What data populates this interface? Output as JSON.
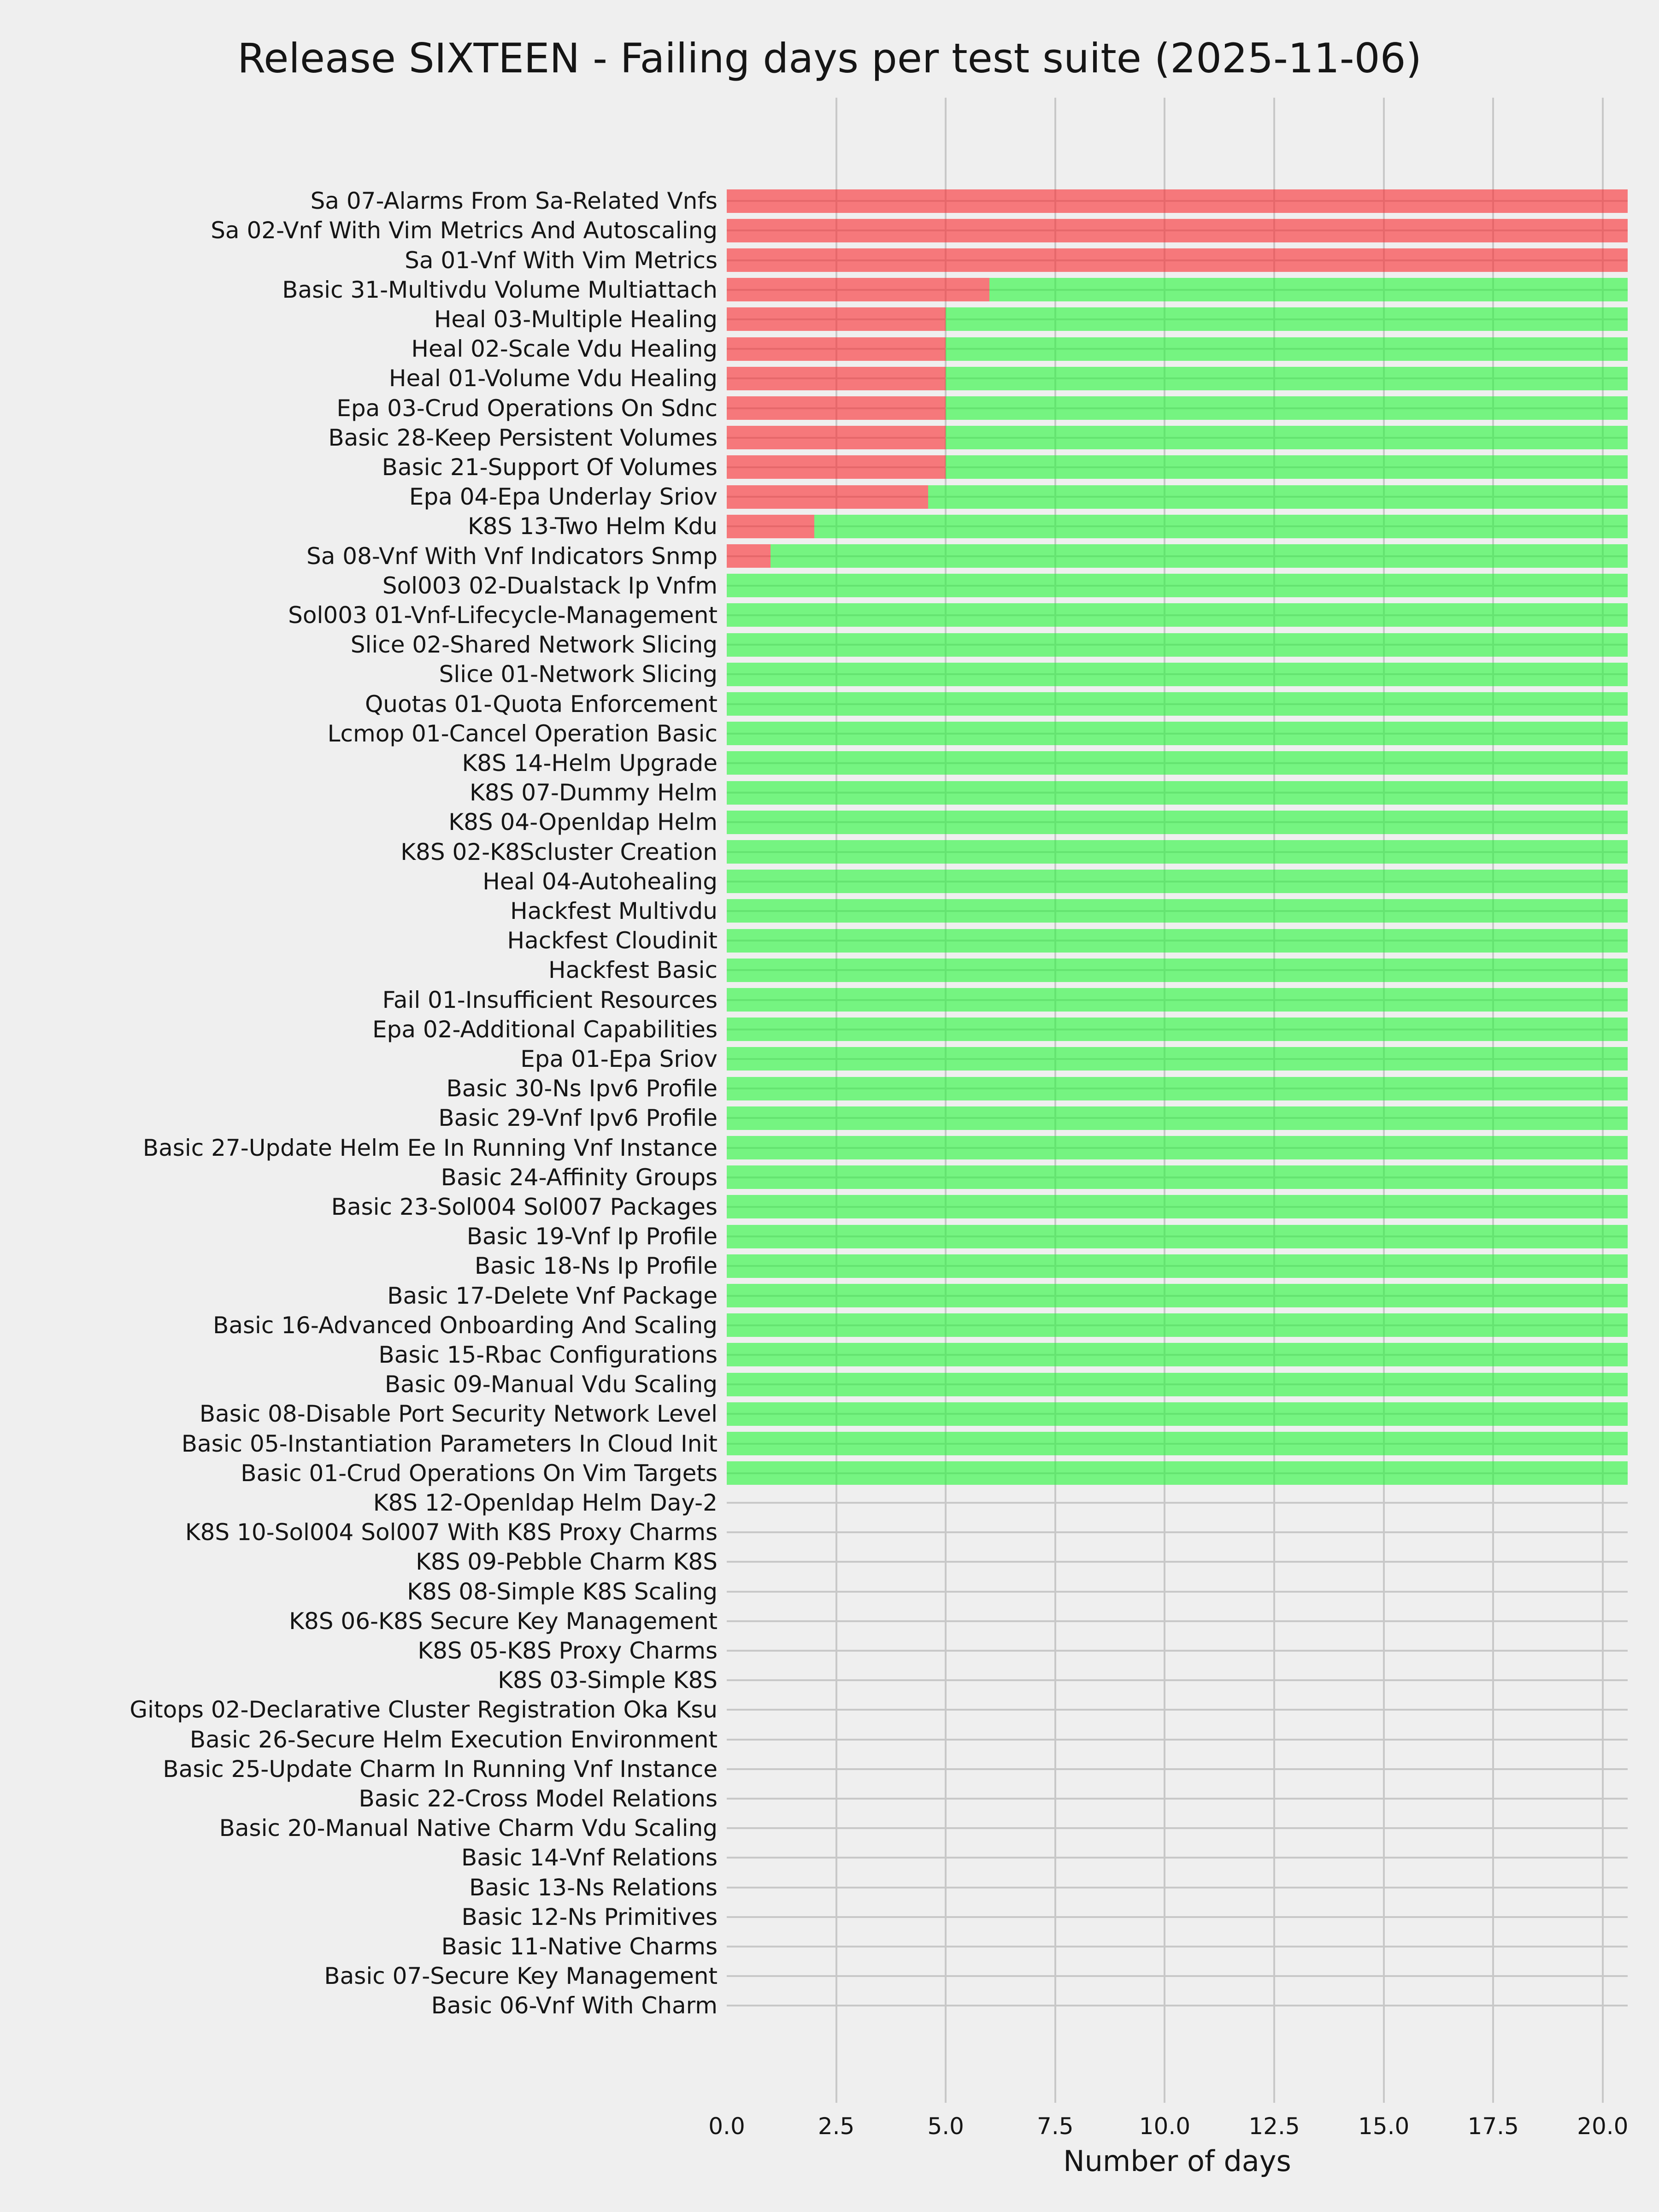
{
  "chart_data": {
    "type": "bar",
    "orientation": "horizontal",
    "stacked": true,
    "title": "Release SIXTEEN - Failing days per test suite (2025-11-06)",
    "xlabel": "Number of days",
    "xlim": [
      0,
      20.57
    ],
    "grid": true,
    "legend": "none",
    "x_ticks": {
      "values": [
        0,
        2.5,
        5,
        7.5,
        10,
        12.5,
        15,
        17.5,
        20
      ],
      "labels": [
        "0.0",
        "2.5",
        "5.0",
        "7.5",
        "10.0",
        "12.5",
        "15.0",
        "17.5",
        "20.0"
      ]
    },
    "series": [
      {
        "name": "failing-days",
        "color": "#f47577"
      },
      {
        "name": "passing-days",
        "color": "#79f47e"
      }
    ],
    "colors": {
      "background": "#efefef",
      "grid": "#c8c8c8",
      "text": "#151515",
      "failing_fill": "rgba(250,40,45,0.60)",
      "passing_fill": "rgba(35,247,55,0.60)"
    },
    "rows": [
      {
        "label": "Sa 07-Alarms From Sa-Related Vnfs",
        "failing": 20.57,
        "passing": 0
      },
      {
        "label": "Sa 02-Vnf With Vim Metrics And Autoscaling",
        "failing": 20.57,
        "passing": 0
      },
      {
        "label": "Sa 01-Vnf With Vim Metrics",
        "failing": 20.57,
        "passing": 0
      },
      {
        "label": "Basic 31-Multivdu Volume Multiattach",
        "failing": 6.0,
        "passing": 14.57
      },
      {
        "label": "Heal 03-Multiple Healing",
        "failing": 5.0,
        "passing": 15.57
      },
      {
        "label": "Heal 02-Scale Vdu Healing",
        "failing": 5.0,
        "passing": 15.57
      },
      {
        "label": "Heal 01-Volume Vdu Healing",
        "failing": 5.0,
        "passing": 15.57
      },
      {
        "label": "Epa 03-Crud Operations On Sdnc",
        "failing": 5.0,
        "passing": 15.57
      },
      {
        "label": "Basic 28-Keep Persistent Volumes",
        "failing": 5.0,
        "passing": 15.57
      },
      {
        "label": "Basic 21-Support Of Volumes",
        "failing": 5.0,
        "passing": 15.57
      },
      {
        "label": "Epa 04-Epa Underlay Sriov",
        "failing": 4.6,
        "passing": 15.97
      },
      {
        "label": "K8S 13-Two Helm Kdu",
        "failing": 2.0,
        "passing": 18.57
      },
      {
        "label": "Sa 08-Vnf With Vnf Indicators Snmp",
        "failing": 1.0,
        "passing": 19.57
      },
      {
        "label": "Sol003 02-Dualstack Ip Vnfm",
        "failing": 0,
        "passing": 20.57
      },
      {
        "label": "Sol003 01-Vnf-Lifecycle-Management",
        "failing": 0,
        "passing": 20.57
      },
      {
        "label": "Slice 02-Shared Network Slicing",
        "failing": 0,
        "passing": 20.57
      },
      {
        "label": "Slice 01-Network Slicing",
        "failing": 0,
        "passing": 20.57
      },
      {
        "label": "Quotas 01-Quota Enforcement",
        "failing": 0,
        "passing": 20.57
      },
      {
        "label": "Lcmop 01-Cancel Operation Basic",
        "failing": 0,
        "passing": 20.57
      },
      {
        "label": "K8S 14-Helm Upgrade",
        "failing": 0,
        "passing": 20.57
      },
      {
        "label": "K8S 07-Dummy Helm",
        "failing": 0,
        "passing": 20.57
      },
      {
        "label": "K8S 04-Openldap Helm",
        "failing": 0,
        "passing": 20.57
      },
      {
        "label": "K8S 02-K8Scluster Creation",
        "failing": 0,
        "passing": 20.57
      },
      {
        "label": "Heal 04-Autohealing",
        "failing": 0,
        "passing": 20.57
      },
      {
        "label": "Hackfest Multivdu",
        "failing": 0,
        "passing": 20.57
      },
      {
        "label": "Hackfest Cloudinit",
        "failing": 0,
        "passing": 20.57
      },
      {
        "label": "Hackfest Basic",
        "failing": 0,
        "passing": 20.57
      },
      {
        "label": "Fail 01-Insufficient Resources",
        "failing": 0,
        "passing": 20.57
      },
      {
        "label": "Epa 02-Additional Capabilities",
        "failing": 0,
        "passing": 20.57
      },
      {
        "label": "Epa 01-Epa Sriov",
        "failing": 0,
        "passing": 20.57
      },
      {
        "label": "Basic 30-Ns Ipv6 Profile",
        "failing": 0,
        "passing": 20.57
      },
      {
        "label": "Basic 29-Vnf Ipv6 Profile",
        "failing": 0,
        "passing": 20.57
      },
      {
        "label": "Basic 27-Update Helm Ee In Running Vnf Instance",
        "failing": 0,
        "passing": 20.57
      },
      {
        "label": "Basic 24-Affinity Groups",
        "failing": 0,
        "passing": 20.57
      },
      {
        "label": "Basic 23-Sol004 Sol007 Packages",
        "failing": 0,
        "passing": 20.57
      },
      {
        "label": "Basic 19-Vnf Ip Profile",
        "failing": 0,
        "passing": 20.57
      },
      {
        "label": "Basic 18-Ns Ip Profile",
        "failing": 0,
        "passing": 20.57
      },
      {
        "label": "Basic 17-Delete Vnf Package",
        "failing": 0,
        "passing": 20.57
      },
      {
        "label": "Basic 16-Advanced Onboarding And Scaling",
        "failing": 0,
        "passing": 20.57
      },
      {
        "label": "Basic 15-Rbac Configurations",
        "failing": 0,
        "passing": 20.57
      },
      {
        "label": "Basic 09-Manual Vdu Scaling",
        "failing": 0,
        "passing": 20.57
      },
      {
        "label": "Basic 08-Disable Port Security Network Level",
        "failing": 0,
        "passing": 20.57
      },
      {
        "label": "Basic 05-Instantiation Parameters In Cloud Init",
        "failing": 0,
        "passing": 20.57
      },
      {
        "label": "Basic 01-Crud Operations On Vim Targets",
        "failing": 0,
        "passing": 20.57
      },
      {
        "label": "K8S 12-Openldap Helm Day-2",
        "failing": 0,
        "passing": 0
      },
      {
        "label": "K8S 10-Sol004 Sol007 With K8S Proxy Charms",
        "failing": 0,
        "passing": 0
      },
      {
        "label": "K8S 09-Pebble Charm K8S",
        "failing": 0,
        "passing": 0
      },
      {
        "label": "K8S 08-Simple K8S Scaling",
        "failing": 0,
        "passing": 0
      },
      {
        "label": "K8S 06-K8S Secure Key Management",
        "failing": 0,
        "passing": 0
      },
      {
        "label": "K8S 05-K8S Proxy Charms",
        "failing": 0,
        "passing": 0
      },
      {
        "label": "K8S 03-Simple K8S",
        "failing": 0,
        "passing": 0
      },
      {
        "label": "Gitops 02-Declarative Cluster Registration Oka Ksu",
        "failing": 0,
        "passing": 0
      },
      {
        "label": "Basic 26-Secure Helm Execution Environment",
        "failing": 0,
        "passing": 0
      },
      {
        "label": "Basic 25-Update Charm In Running Vnf Instance",
        "failing": 0,
        "passing": 0
      },
      {
        "label": "Basic 22-Cross Model Relations",
        "failing": 0,
        "passing": 0
      },
      {
        "label": "Basic 20-Manual Native Charm Vdu Scaling",
        "failing": 0,
        "passing": 0
      },
      {
        "label": "Basic 14-Vnf Relations",
        "failing": 0,
        "passing": 0
      },
      {
        "label": "Basic 13-Ns Relations",
        "failing": 0,
        "passing": 0
      },
      {
        "label": "Basic 12-Ns Primitives",
        "failing": 0,
        "passing": 0
      },
      {
        "label": "Basic 11-Native Charms",
        "failing": 0,
        "passing": 0
      },
      {
        "label": "Basic 07-Secure Key Management",
        "failing": 0,
        "passing": 0
      },
      {
        "label": "Basic 06-Vnf With Charm",
        "failing": 0,
        "passing": 0
      }
    ]
  }
}
